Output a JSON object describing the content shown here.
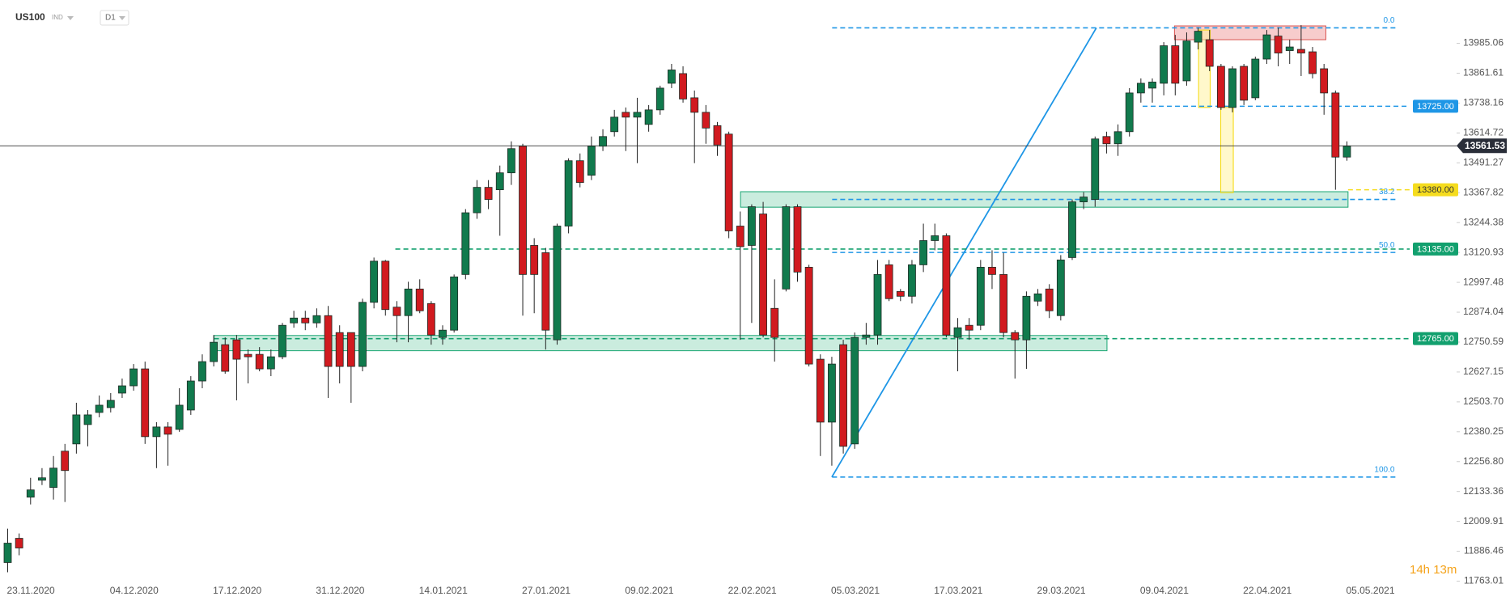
{
  "chart_data": {
    "type": "candlestick",
    "symbol": "US100",
    "market": "IND",
    "interval": "D1",
    "countdown": "14h 13m",
    "categories": [
      "23.11.2020",
      null,
      null,
      null,
      null,
      null,
      null,
      null,
      null,
      "04.12.2020",
      null,
      null,
      null,
      null,
      null,
      null,
      null,
      null,
      "17.12.2020",
      null,
      null,
      null,
      null,
      null,
      null,
      null,
      null,
      "31.12.2020",
      null,
      null,
      null,
      null,
      null,
      null,
      null,
      null,
      "14.01.2021",
      null,
      null,
      null,
      null,
      null,
      null,
      null,
      null,
      "27.01.2021",
      null,
      null,
      null,
      null,
      null,
      null,
      null,
      null,
      "09.02.2021",
      null,
      null,
      null,
      null,
      null,
      null,
      null,
      null,
      "22.02.2021",
      null,
      null,
      null,
      null,
      null,
      null,
      null,
      null,
      "05.03.2021",
      null,
      null,
      null,
      null,
      null,
      null,
      null,
      null,
      "17.03.2021",
      null,
      null,
      null,
      null,
      null,
      null,
      null,
      null,
      "29.03.2021",
      null,
      null,
      null,
      null,
      null,
      null,
      null,
      null,
      "09.04.2021",
      null,
      null,
      null,
      null,
      null,
      null,
      null,
      null,
      "22.04.2021",
      null,
      null,
      null,
      null,
      null,
      null,
      null,
      null,
      "05.05.2021"
    ],
    "open": [
      11840,
      11940,
      12110,
      12180,
      12150,
      12300,
      12330,
      12410,
      12460,
      12480,
      12540,
      12570,
      12640,
      12360,
      12400,
      12390,
      12470,
      12590,
      12670,
      12740,
      12760,
      12700,
      12700,
      12640,
      12690,
      12830,
      12850,
      12830,
      12860,
      12790,
      12790,
      12650,
      12915,
      13085,
      12895,
      12860,
      12970,
      12910,
      12770,
      12800,
      13030,
      13285,
      13390,
      13380,
      13450,
      13560,
      13150,
      13120,
      12760,
      13230,
      13500,
      13440,
      13560,
      13620,
      13700,
      13680,
      13650,
      13710,
      13820,
      13860,
      13760,
      13700,
      13645,
      13610,
      13230,
      13150,
      13280,
      12890,
      12970,
      13310,
      13060,
      12680,
      12420,
      12740,
      12330,
      12770,
      12780,
      13070,
      12960,
      12940,
      13070,
      13170,
      13190,
      12770,
      12820,
      12820,
      13060,
      13030,
      12790,
      12760,
      12920,
      12970,
      12860,
      13100,
      13330,
      13340,
      13600,
      13570,
      13620,
      13780,
      13800,
      13820,
      13975,
      13830,
      13990,
      14000,
      13890,
      13720,
      13890,
      13760,
      13920,
      14015,
      13955,
      13960,
      13950,
      13880,
      13780,
      13515
    ],
    "high": [
      11980,
      11960,
      12190,
      12230,
      12280,
      12330,
      12500,
      12470,
      12530,
      12540,
      12600,
      12660,
      12670,
      12420,
      12420,
      12560,
      12610,
      12700,
      12780,
      12770,
      12780,
      12720,
      12730,
      12720,
      12830,
      12880,
      12880,
      12890,
      12900,
      12820,
      12790,
      12930,
      13100,
      13090,
      12920,
      13000,
      13010,
      12920,
      12820,
      13030,
      13300,
      13420,
      13420,
      13480,
      13580,
      13570,
      13180,
      13140,
      13240,
      13510,
      13530,
      13600,
      13630,
      13710,
      13720,
      13760,
      13730,
      13810,
      13900,
      13890,
      13790,
      13730,
      13660,
      13620,
      13290,
      13320,
      13330,
      13010,
      13320,
      13320,
      13070,
      12700,
      12690,
      12760,
      12790,
      12830,
      13090,
      13090,
      12970,
      13090,
      13240,
      13240,
      13200,
      12850,
      12850,
      13090,
      13130,
      13120,
      12800,
      12960,
      12970,
      12990,
      13110,
      13340,
      13370,
      13600,
      13620,
      13650,
      13800,
      13840,
      13840,
      13990,
      14020,
      14030,
      14050,
      14040,
      13900,
      13890,
      13900,
      13930,
      14040,
      14050,
      14000,
      14060,
      13970,
      13900,
      13790,
      13580
    ],
    "low": [
      11800,
      11870,
      12080,
      12160,
      12100,
      12090,
      12290,
      12320,
      12440,
      12460,
      12520,
      12550,
      12330,
      12230,
      12240,
      12380,
      12450,
      12560,
      12650,
      12620,
      12510,
      12580,
      12630,
      12610,
      12680,
      12810,
      12800,
      12810,
      12520,
      12580,
      12500,
      12630,
      12890,
      12860,
      12750,
      12750,
      12870,
      12740,
      12740,
      12790,
      13010,
      13260,
      13300,
      13190,
      13400,
      12860,
      12870,
      12720,
      12740,
      13200,
      13390,
      13420,
      13540,
      13600,
      13540,
      13490,
      13620,
      13690,
      13800,
      13740,
      13490,
      13570,
      13520,
      13180,
      12760,
      12830,
      12770,
      12670,
      12960,
      13000,
      12650,
      12280,
      12240,
      12290,
      12310,
      12740,
      12740,
      12920,
      12920,
      12910,
      13040,
      13130,
      12770,
      12630,
      12760,
      12800,
      12970,
      12770,
      12600,
      12640,
      12900,
      12850,
      12840,
      13090,
      13300,
      13310,
      13530,
      13520,
      13600,
      13740,
      13740,
      13770,
      13770,
      13810,
      13960,
      13870,
      13710,
      13700,
      13730,
      13750,
      13900,
      13890,
      13900,
      13850,
      13840,
      13690,
      13380,
      13500
    ],
    "close": [
      11920,
      11900,
      12140,
      12190,
      12230,
      12220,
      12450,
      12450,
      12490,
      12510,
      12570,
      12640,
      12360,
      12400,
      12370,
      12490,
      12590,
      12670,
      12750,
      12630,
      12680,
      12690,
      12640,
      12690,
      12820,
      12850,
      12830,
      12860,
      12650,
      12650,
      12650,
      12915,
      13085,
      12885,
      12860,
      12970,
      12880,
      12780,
      12800,
      13020,
      13285,
      13390,
      13340,
      13450,
      13550,
      13030,
      13030,
      12800,
      13230,
      13500,
      13410,
      13560,
      13600,
      13680,
      13680,
      13700,
      13710,
      13800,
      13875,
      13755,
      13700,
      13635,
      13565,
      13210,
      13145,
      13310,
      12780,
      12770,
      13310,
      13040,
      12660,
      12420,
      12660,
      12320,
      12770,
      12780,
      13030,
      12930,
      12940,
      13070,
      13170,
      13190,
      12780,
      12810,
      12800,
      13060,
      13030,
      12790,
      12760,
      12940,
      12950,
      12880,
      13090,
      13330,
      13350,
      13590,
      13570,
      13620,
      13780,
      13820,
      13825,
      13975,
      13820,
      13995,
      14035,
      13890,
      13720,
      13880,
      13750,
      13920,
      14020,
      13945,
      13970,
      13945,
      13860,
      13780,
      13515,
      13560
    ],
    "up_color": "#117a4d",
    "down_color": "#d11a1f",
    "ylim": [
      11738,
      14164
    ],
    "yticks": [
      13985.06,
      13861.61,
      13738.16,
      13614.72,
      13491.27,
      13367.82,
      13244.38,
      {
        "value": 13120.93,
        "label": "13120.93"
      },
      12997.48,
      12874.04,
      12750.59,
      12627.15,
      {
        "value": 12503.7,
        "label": "12503.70"
      },
      12380.25,
      {
        "value": 12256.8,
        "label": "12256.80"
      },
      12133.36,
      12009.91,
      11886.46,
      11763.01
    ],
    "last_price": 13561.53,
    "price_lines": [
      {
        "value": 13725,
        "label": "13725.00",
        "color": "#1e96e6"
      },
      {
        "value": 13380,
        "label": "13380.00",
        "color": "#f5dc1e"
      },
      {
        "value": 13135,
        "label": "13135.00",
        "color": "#12a06e"
      },
      {
        "value": 12765,
        "label": "12765.00",
        "color": "#12a06e"
      }
    ],
    "fib": {
      "high": 14049,
      "low": 12193,
      "color": "#1e96e6",
      "levels": [
        {
          "value": 0,
          "label": "0.0"
        },
        38.2,
        {
          "value": 50,
          "label": "50.0"
        },
        {
          "value": 100,
          "label": "100.0"
        }
      ]
    },
    "zones": [
      {
        "low": 14000,
        "high": 14057,
        "color": "#f1a3a3"
      },
      {
        "low": 13308,
        "high": 13372,
        "color": "#9fdcc2"
      },
      {
        "low": 12715,
        "high": 12778,
        "color": "#9fdcc2"
      },
      {
        "low": 13720,
        "high": 14040,
        "color": "#fff3a0"
      },
      {
        "low": 13368,
        "high": 13720,
        "color": "#fff3a0"
      }
    ]
  }
}
